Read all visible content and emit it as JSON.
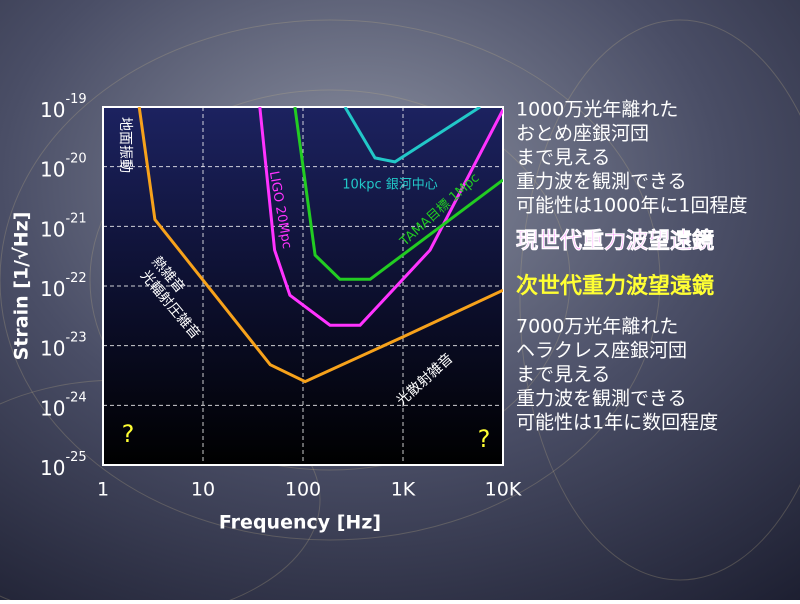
{
  "chart_data": {
    "type": "line",
    "xlabel": "Frequency [Hz]",
    "ylabel": "Strain [1/√Hz]",
    "log_x": true,
    "log_y": true,
    "grid": true,
    "xlim": [
      1,
      10000
    ],
    "ylim": [
      1e-25,
      1e-19
    ],
    "xticks": [
      1,
      10,
      100,
      {
        "value": 1000,
        "label": "1K"
      },
      {
        "value": 10000,
        "label": "10K"
      }
    ],
    "yticks": [
      {
        "value": 1e-25,
        "label": "10",
        "sup": "-25"
      },
      {
        "value": 1e-24,
        "label": "10",
        "sup": "-24"
      },
      {
        "value": 1e-23,
        "label": "10",
        "sup": "-23"
      },
      {
        "value": 1e-22,
        "label": "10",
        "sup": "-22"
      },
      {
        "value": 1e-21,
        "label": "10",
        "sup": "-21"
      },
      {
        "value": 1e-20,
        "label": "10",
        "sup": "-20"
      },
      {
        "value": 1e-19,
        "label": "10",
        "sup": "-19"
      }
    ],
    "series": [
      {
        "name": "次世代重力波望遠鏡",
        "color": "#f7a21b",
        "x": [
          2.3,
          3.3,
          47,
          105,
          1000,
          10000
        ],
        "y": [
          1e-19,
          1.3e-21,
          4.8e-24,
          2.5e-24,
          1.4e-23,
          8.5e-23
        ]
      },
      {
        "name": "LIGO 20Mpc",
        "color": "#ff33ff",
        "x": [
          37,
          52,
          74,
          186,
          372,
          1860,
          10000
        ],
        "y": [
          1e-19,
          4e-22,
          7e-23,
          2.2e-23,
          2.2e-23,
          4e-22,
          9e-20
        ]
      },
      {
        "name": "TAMA目標 1Mpc",
        "color": "#22cc22",
        "x": [
          83,
          132,
          234,
          470,
          10000
        ],
        "y": [
          1e-19,
          3.3e-22,
          1.3e-22,
          1.3e-22,
          6e-21
        ]
      },
      {
        "name": "10kpc 銀河中心",
        "color": "#22c8c8",
        "x": [
          263,
          525,
          830,
          5900
        ],
        "y": [
          1e-19,
          1.4e-20,
          1.2e-20,
          1e-19
        ]
      }
    ],
    "annotations": [
      "地面振動",
      "熱雑音",
      "光輻射圧雑音",
      "光散射雑音",
      "?",
      "?"
    ]
  },
  "side_text": {
    "block1": [
      "1000万光年離れた",
      "おとめ座銀河団",
      "まで見える",
      "重力波を観測できる",
      "可能性は1000年に1回程度"
    ],
    "current_generation": "現世代重力波望遠鏡",
    "block2": [
      "7000万光年離れた",
      "ヘラクレス座銀河団",
      "まで見える",
      "重力波を観測できる",
      "可能性は1年に数回程度"
    ]
  }
}
